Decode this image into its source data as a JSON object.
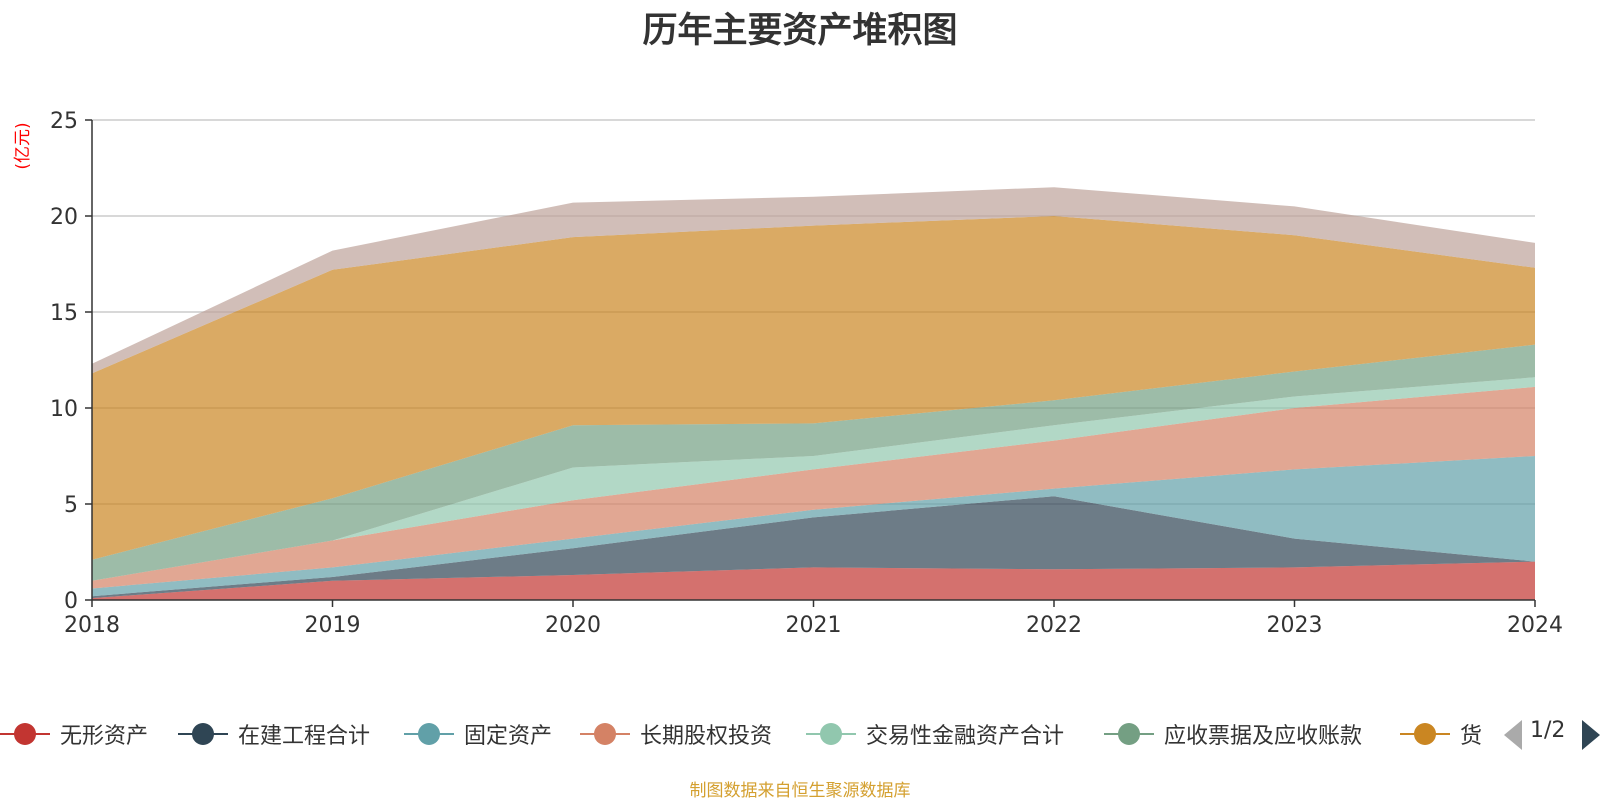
{
  "chart_data": {
    "type": "area",
    "title": "历年主要资产堆积图",
    "ylabel": "(亿元)",
    "xlabel": "",
    "stacked": true,
    "categories": [
      "2018",
      "2019",
      "2020",
      "2021",
      "2022",
      "2023",
      "2024"
    ],
    "ylim": [
      0,
      25
    ],
    "yticks": [
      0,
      5,
      10,
      15,
      20,
      25
    ],
    "grid": true,
    "legend_position": "bottom",
    "series": [
      {
        "name": "无形资产",
        "color": "#c23531",
        "values": [
          0.1,
          1.0,
          1.3,
          1.7,
          1.6,
          1.7,
          2.0
        ]
      },
      {
        "name": "在建工程合计",
        "color": "#2f4554",
        "values": [
          0.1,
          0.2,
          1.4,
          2.6,
          3.8,
          1.5,
          0.0
        ]
      },
      {
        "name": "固定资产",
        "color": "#61a0a8",
        "values": [
          0.4,
          0.5,
          0.5,
          0.4,
          0.4,
          3.6,
          5.5
        ]
      },
      {
        "name": "长期股权投资",
        "color": "#d48265",
        "values": [
          0.4,
          1.4,
          2.0,
          2.1,
          2.5,
          3.2,
          3.6
        ]
      },
      {
        "name": "交易性金融资产合计",
        "color": "#91c7ae",
        "values": [
          0.0,
          0.0,
          1.7,
          0.7,
          0.8,
          0.6,
          0.5
        ]
      },
      {
        "name": "应收票据及应收账款",
        "color": "#749f83",
        "values": [
          1.1,
          2.2,
          2.2,
          1.7,
          1.3,
          1.3,
          1.7
        ]
      },
      {
        "name": "货币资金",
        "color": "#ca8622",
        "values": [
          9.7,
          11.9,
          9.8,
          10.3,
          9.6,
          7.1,
          4.0
        ]
      },
      {
        "name": "",
        "color": "#bda29a",
        "values": [
          0.5,
          1.0,
          1.8,
          1.5,
          1.5,
          1.5,
          1.3
        ]
      }
    ]
  },
  "legend": {
    "items": [
      {
        "label": "无形资产",
        "color": "#c23531"
      },
      {
        "label": "在建工程合计",
        "color": "#2f4554"
      },
      {
        "label": "固定资产",
        "color": "#61a0a8"
      },
      {
        "label": "长期股权投资",
        "color": "#d48265"
      },
      {
        "label": "交易性金融资产合计",
        "color": "#91c7ae"
      },
      {
        "label": "应收票据及应收账款",
        "color": "#749f83"
      },
      {
        "label": "货",
        "color": "#ca8622"
      }
    ],
    "page": "1/2"
  },
  "source": "制图数据来自恒生聚源数据库"
}
